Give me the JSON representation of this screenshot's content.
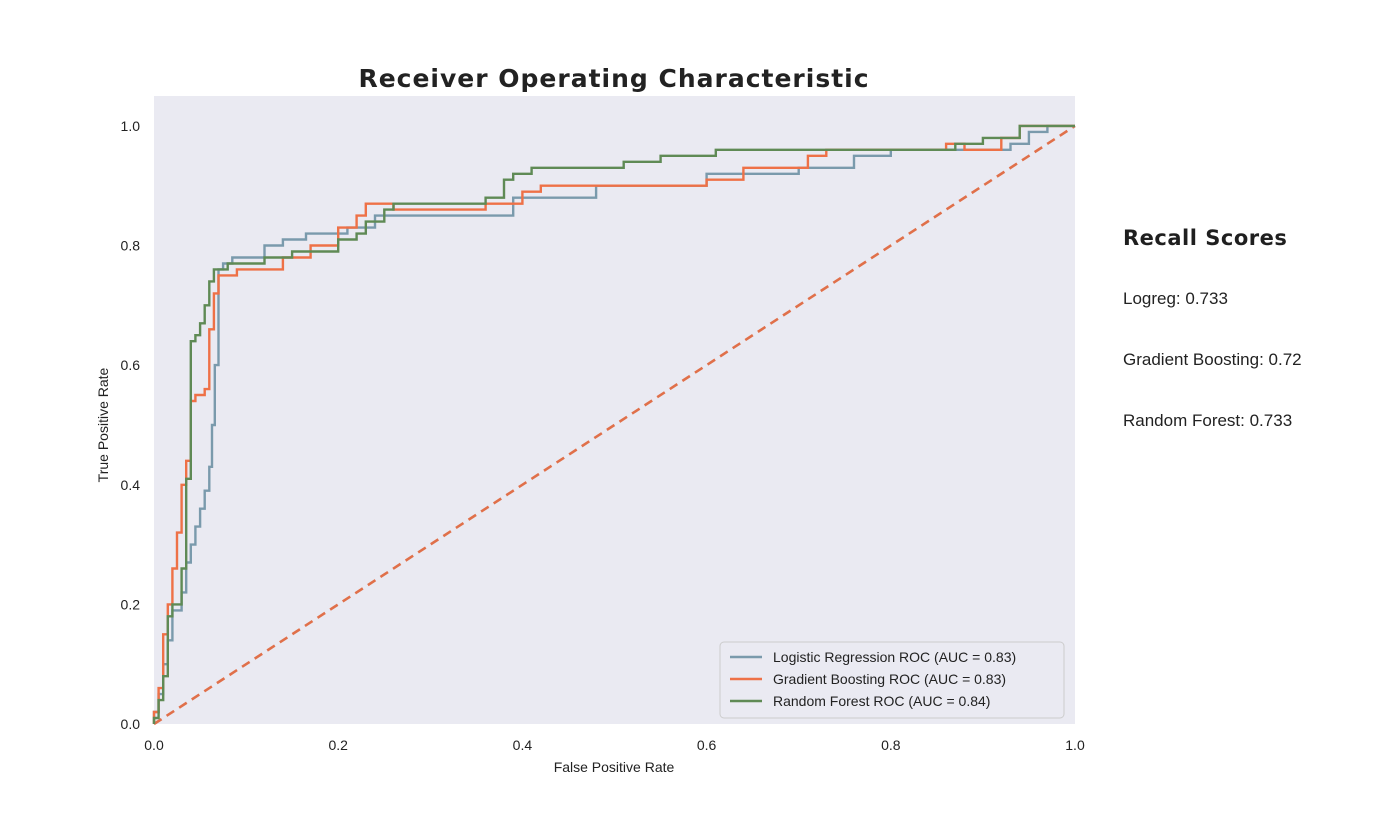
{
  "chart_data": {
    "type": "line",
    "title": "Receiver Operating Characteristic",
    "xlabel": "False Positive Rate",
    "ylabel": "True Positive Rate",
    "xlim": [
      0,
      1
    ],
    "ylim": [
      0,
      1.05
    ],
    "xticks": [
      "0.0",
      "0.2",
      "0.4",
      "0.6",
      "0.8",
      "1.0"
    ],
    "yticks": [
      "0.0",
      "0.2",
      "0.4",
      "0.6",
      "0.8",
      "1.0"
    ],
    "grid": false,
    "background": "#eaeaf2",
    "legend_position": "lower-right",
    "series": [
      {
        "name": "Logistic Regression ROC (AUC = 0.83)",
        "color": "#7a9aac",
        "points": [
          [
            0,
            0
          ],
          [
            0,
            0.02
          ],
          [
            0.005,
            0.02
          ],
          [
            0.005,
            0.05
          ],
          [
            0.01,
            0.05
          ],
          [
            0.01,
            0.1
          ],
          [
            0.015,
            0.1
          ],
          [
            0.015,
            0.14
          ],
          [
            0.02,
            0.14
          ],
          [
            0.02,
            0.19
          ],
          [
            0.03,
            0.19
          ],
          [
            0.03,
            0.22
          ],
          [
            0.035,
            0.22
          ],
          [
            0.035,
            0.27
          ],
          [
            0.04,
            0.27
          ],
          [
            0.04,
            0.3
          ],
          [
            0.045,
            0.3
          ],
          [
            0.045,
            0.33
          ],
          [
            0.05,
            0.33
          ],
          [
            0.05,
            0.36
          ],
          [
            0.055,
            0.36
          ],
          [
            0.055,
            0.39
          ],
          [
            0.06,
            0.39
          ],
          [
            0.06,
            0.43
          ],
          [
            0.063,
            0.43
          ],
          [
            0.063,
            0.5
          ],
          [
            0.066,
            0.5
          ],
          [
            0.066,
            0.6
          ],
          [
            0.07,
            0.6
          ],
          [
            0.07,
            0.76
          ],
          [
            0.075,
            0.76
          ],
          [
            0.075,
            0.77
          ],
          [
            0.085,
            0.77
          ],
          [
            0.085,
            0.78
          ],
          [
            0.12,
            0.78
          ],
          [
            0.12,
            0.8
          ],
          [
            0.14,
            0.8
          ],
          [
            0.14,
            0.81
          ],
          [
            0.165,
            0.81
          ],
          [
            0.165,
            0.82
          ],
          [
            0.21,
            0.82
          ],
          [
            0.21,
            0.83
          ],
          [
            0.24,
            0.83
          ],
          [
            0.24,
            0.85
          ],
          [
            0.39,
            0.85
          ],
          [
            0.39,
            0.88
          ],
          [
            0.48,
            0.88
          ],
          [
            0.48,
            0.9
          ],
          [
            0.6,
            0.9
          ],
          [
            0.6,
            0.92
          ],
          [
            0.7,
            0.92
          ],
          [
            0.7,
            0.93
          ],
          [
            0.76,
            0.93
          ],
          [
            0.76,
            0.95
          ],
          [
            0.8,
            0.95
          ],
          [
            0.8,
            0.96
          ],
          [
            0.93,
            0.96
          ],
          [
            0.93,
            0.97
          ],
          [
            0.95,
            0.97
          ],
          [
            0.95,
            0.99
          ],
          [
            0.97,
            0.99
          ],
          [
            0.97,
            1.0
          ],
          [
            1.0,
            1.0
          ]
        ]
      },
      {
        "name": "Gradient Boosting ROC (AUC = 0.83)",
        "color": "#ee7147",
        "points": [
          [
            0,
            0
          ],
          [
            0,
            0.02
          ],
          [
            0.005,
            0.02
          ],
          [
            0.005,
            0.06
          ],
          [
            0.01,
            0.06
          ],
          [
            0.01,
            0.15
          ],
          [
            0.015,
            0.15
          ],
          [
            0.015,
            0.2
          ],
          [
            0.02,
            0.2
          ],
          [
            0.02,
            0.26
          ],
          [
            0.025,
            0.26
          ],
          [
            0.025,
            0.32
          ],
          [
            0.03,
            0.32
          ],
          [
            0.03,
            0.4
          ],
          [
            0.035,
            0.4
          ],
          [
            0.035,
            0.44
          ],
          [
            0.04,
            0.44
          ],
          [
            0.04,
            0.54
          ],
          [
            0.045,
            0.54
          ],
          [
            0.045,
            0.55
          ],
          [
            0.055,
            0.55
          ],
          [
            0.055,
            0.56
          ],
          [
            0.06,
            0.56
          ],
          [
            0.06,
            0.66
          ],
          [
            0.065,
            0.66
          ],
          [
            0.065,
            0.72
          ],
          [
            0.07,
            0.72
          ],
          [
            0.07,
            0.75
          ],
          [
            0.09,
            0.75
          ],
          [
            0.09,
            0.76
          ],
          [
            0.14,
            0.76
          ],
          [
            0.14,
            0.78
          ],
          [
            0.17,
            0.78
          ],
          [
            0.17,
            0.8
          ],
          [
            0.2,
            0.8
          ],
          [
            0.2,
            0.83
          ],
          [
            0.22,
            0.83
          ],
          [
            0.22,
            0.85
          ],
          [
            0.23,
            0.85
          ],
          [
            0.23,
            0.87
          ],
          [
            0.26,
            0.87
          ],
          [
            0.26,
            0.86
          ],
          [
            0.36,
            0.86
          ],
          [
            0.36,
            0.87
          ],
          [
            0.4,
            0.87
          ],
          [
            0.4,
            0.89
          ],
          [
            0.42,
            0.89
          ],
          [
            0.42,
            0.9
          ],
          [
            0.6,
            0.9
          ],
          [
            0.6,
            0.91
          ],
          [
            0.64,
            0.91
          ],
          [
            0.64,
            0.93
          ],
          [
            0.71,
            0.93
          ],
          [
            0.71,
            0.95
          ],
          [
            0.73,
            0.95
          ],
          [
            0.73,
            0.96
          ],
          [
            0.86,
            0.96
          ],
          [
            0.86,
            0.97
          ],
          [
            0.88,
            0.97
          ],
          [
            0.88,
            0.96
          ],
          [
            0.92,
            0.96
          ],
          [
            0.92,
            0.98
          ],
          [
            0.94,
            0.98
          ],
          [
            0.94,
            1.0
          ],
          [
            1.0,
            1.0
          ]
        ]
      },
      {
        "name": "Random Forest ROC (AUC = 0.84)",
        "color": "#5f8a55",
        "points": [
          [
            0,
            0
          ],
          [
            0,
            0.01
          ],
          [
            0.005,
            0.01
          ],
          [
            0.005,
            0.04
          ],
          [
            0.01,
            0.04
          ],
          [
            0.01,
            0.08
          ],
          [
            0.015,
            0.08
          ],
          [
            0.015,
            0.18
          ],
          [
            0.02,
            0.18
          ],
          [
            0.02,
            0.2
          ],
          [
            0.03,
            0.2
          ],
          [
            0.03,
            0.26
          ],
          [
            0.035,
            0.26
          ],
          [
            0.035,
            0.41
          ],
          [
            0.04,
            0.41
          ],
          [
            0.04,
            0.64
          ],
          [
            0.045,
            0.64
          ],
          [
            0.045,
            0.65
          ],
          [
            0.05,
            0.65
          ],
          [
            0.05,
            0.67
          ],
          [
            0.055,
            0.67
          ],
          [
            0.055,
            0.7
          ],
          [
            0.06,
            0.7
          ],
          [
            0.06,
            0.74
          ],
          [
            0.065,
            0.74
          ],
          [
            0.065,
            0.76
          ],
          [
            0.08,
            0.76
          ],
          [
            0.08,
            0.77
          ],
          [
            0.12,
            0.77
          ],
          [
            0.12,
            0.78
          ],
          [
            0.15,
            0.78
          ],
          [
            0.15,
            0.79
          ],
          [
            0.2,
            0.79
          ],
          [
            0.2,
            0.81
          ],
          [
            0.22,
            0.81
          ],
          [
            0.22,
            0.82
          ],
          [
            0.23,
            0.82
          ],
          [
            0.23,
            0.84
          ],
          [
            0.25,
            0.84
          ],
          [
            0.25,
            0.86
          ],
          [
            0.26,
            0.86
          ],
          [
            0.26,
            0.87
          ],
          [
            0.36,
            0.87
          ],
          [
            0.36,
            0.88
          ],
          [
            0.38,
            0.88
          ],
          [
            0.38,
            0.91
          ],
          [
            0.39,
            0.91
          ],
          [
            0.39,
            0.92
          ],
          [
            0.41,
            0.92
          ],
          [
            0.41,
            0.93
          ],
          [
            0.51,
            0.93
          ],
          [
            0.51,
            0.94
          ],
          [
            0.55,
            0.94
          ],
          [
            0.55,
            0.95
          ],
          [
            0.61,
            0.95
          ],
          [
            0.61,
            0.96
          ],
          [
            0.87,
            0.96
          ],
          [
            0.87,
            0.97
          ],
          [
            0.9,
            0.97
          ],
          [
            0.9,
            0.98
          ],
          [
            0.94,
            0.98
          ],
          [
            0.94,
            1.0
          ],
          [
            1.0,
            1.0
          ]
        ]
      }
    ],
    "reference_line": {
      "color": "#e0704a",
      "points": [
        [
          0,
          0
        ],
        [
          1,
          1
        ]
      ]
    }
  },
  "recall": {
    "title": "Recall Scores",
    "logreg": "Logreg: 0.733",
    "gradient_boosting": "Gradient Boosting: 0.72",
    "random_forest": "Random Forest: 0.733"
  }
}
